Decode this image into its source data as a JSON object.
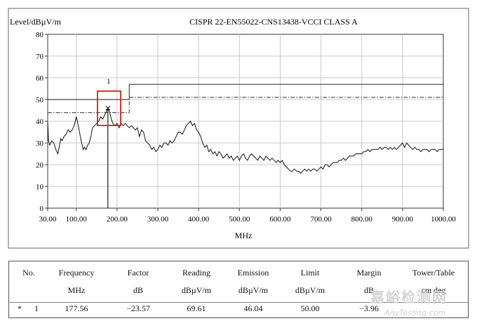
{
  "chart_data": {
    "type": "line",
    "title": "CISPR 22-EN55022-CNS13438-VCCI CLASS A",
    "ylabel": "Level/dBµV/m",
    "xlabel": "MHz",
    "xlim": [
      30,
      1000
    ],
    "ylim": [
      0,
      80
    ],
    "x_ticks": [
      "30.00",
      "100.00",
      "200.00",
      "300.00",
      "400.00",
      "500.00",
      "600.00",
      "700.00",
      "800.00",
      "900.00",
      "1000.00"
    ],
    "y_ticks": [
      "0",
      "10",
      "20",
      "30",
      "40",
      "50",
      "60",
      "70",
      "80"
    ],
    "grid": true,
    "limit_lines": [
      {
        "style": "solid",
        "points": [
          [
            30,
            50
          ],
          [
            230,
            50
          ],
          [
            230,
            57
          ],
          [
            1000,
            57
          ]
        ]
      },
      {
        "style": "dashdot",
        "points": [
          [
            30,
            44
          ],
          [
            230,
            44
          ],
          [
            230,
            51
          ],
          [
            1000,
            51
          ]
        ]
      }
    ],
    "marker": {
      "label": "1",
      "x": 177.56,
      "y": 46.04
    },
    "series": [
      {
        "points": [
          [
            30,
            40
          ],
          [
            32,
            31
          ],
          [
            35,
            29
          ],
          [
            40,
            31
          ],
          [
            45,
            30
          ],
          [
            50,
            27
          ],
          [
            55,
            25
          ],
          [
            58,
            28
          ],
          [
            62,
            32
          ],
          [
            65,
            31
          ],
          [
            70,
            33
          ],
          [
            75,
            34
          ],
          [
            80,
            36
          ],
          [
            85,
            35
          ],
          [
            90,
            36
          ],
          [
            95,
            38
          ],
          [
            100,
            42
          ],
          [
            103,
            40
          ],
          [
            107,
            36
          ],
          [
            110,
            33
          ],
          [
            113,
            30
          ],
          [
            117,
            27
          ],
          [
            120,
            28
          ],
          [
            124,
            27
          ],
          [
            128,
            29
          ],
          [
            132,
            30
          ],
          [
            136,
            33
          ],
          [
            140,
            37
          ],
          [
            145,
            38
          ],
          [
            150,
            39
          ],
          [
            155,
            40
          ],
          [
            160,
            42
          ],
          [
            165,
            41
          ],
          [
            170,
            43
          ],
          [
            175,
            45
          ],
          [
            178,
            46
          ],
          [
            182,
            44
          ],
          [
            186,
            41
          ],
          [
            190,
            39
          ],
          [
            195,
            38
          ],
          [
            200,
            39
          ],
          [
            205,
            37
          ],
          [
            210,
            39
          ],
          [
            215,
            38
          ],
          [
            220,
            39
          ],
          [
            225,
            38
          ],
          [
            230,
            37
          ],
          [
            235,
            38
          ],
          [
            240,
            37
          ],
          [
            245,
            36
          ],
          [
            250,
            37
          ],
          [
            255,
            33
          ],
          [
            260,
            36
          ],
          [
            265,
            35
          ],
          [
            270,
            31
          ],
          [
            275,
            30
          ],
          [
            280,
            29
          ],
          [
            285,
            27
          ],
          [
            290,
            28
          ],
          [
            295,
            26
          ],
          [
            300,
            27
          ],
          [
            305,
            29
          ],
          [
            310,
            28
          ],
          [
            315,
            30
          ],
          [
            320,
            30
          ],
          [
            325,
            29
          ],
          [
            330,
            31
          ],
          [
            335,
            30
          ],
          [
            340,
            31
          ],
          [
            345,
            33
          ],
          [
            350,
            35
          ],
          [
            355,
            35
          ],
          [
            360,
            34
          ],
          [
            365,
            36
          ],
          [
            370,
            38
          ],
          [
            375,
            39
          ],
          [
            380,
            40
          ],
          [
            385,
            38
          ],
          [
            390,
            39
          ],
          [
            395,
            36
          ],
          [
            400,
            35
          ],
          [
            405,
            33
          ],
          [
            410,
            30
          ],
          [
            415,
            28
          ],
          [
            420,
            29
          ],
          [
            425,
            26
          ],
          [
            430,
            27
          ],
          [
            435,
            25
          ],
          [
            440,
            26
          ],
          [
            445,
            24
          ],
          [
            450,
            26
          ],
          [
            455,
            25
          ],
          [
            460,
            23
          ],
          [
            465,
            24
          ],
          [
            470,
            25
          ],
          [
            475,
            23
          ],
          [
            480,
            24
          ],
          [
            485,
            22
          ],
          [
            490,
            23
          ],
          [
            495,
            24
          ],
          [
            500,
            22
          ],
          [
            505,
            24
          ],
          [
            510,
            25
          ],
          [
            515,
            23
          ],
          [
            520,
            22
          ],
          [
            525,
            24
          ],
          [
            530,
            25
          ],
          [
            535,
            24
          ],
          [
            540,
            23
          ],
          [
            545,
            22
          ],
          [
            550,
            24
          ],
          [
            555,
            23
          ],
          [
            560,
            22
          ],
          [
            565,
            24
          ],
          [
            570,
            23
          ],
          [
            575,
            22
          ],
          [
            580,
            23
          ],
          [
            585,
            22
          ],
          [
            590,
            21
          ],
          [
            595,
            22
          ],
          [
            600,
            21
          ],
          [
            605,
            22
          ],
          [
            610,
            20
          ],
          [
            615,
            19
          ],
          [
            620,
            18
          ],
          [
            625,
            17
          ],
          [
            630,
            17
          ],
          [
            635,
            18
          ],
          [
            640,
            17
          ],
          [
            645,
            17
          ],
          [
            650,
            16
          ],
          [
            655,
            17
          ],
          [
            660,
            18
          ],
          [
            665,
            17
          ],
          [
            670,
            18
          ],
          [
            675,
            17
          ],
          [
            680,
            18
          ],
          [
            685,
            18
          ],
          [
            690,
            17
          ],
          [
            695,
            18
          ],
          [
            700,
            19
          ],
          [
            705,
            18
          ],
          [
            710,
            20
          ],
          [
            715,
            20
          ],
          [
            720,
            19
          ],
          [
            725,
            20
          ],
          [
            730,
            21
          ],
          [
            735,
            21
          ],
          [
            740,
            21
          ],
          [
            745,
            22
          ],
          [
            750,
            22
          ],
          [
            755,
            23
          ],
          [
            760,
            22
          ],
          [
            765,
            23
          ],
          [
            770,
            24
          ],
          [
            775,
            24
          ],
          [
            780,
            24
          ],
          [
            785,
            25
          ],
          [
            790,
            25
          ],
          [
            795,
            25
          ],
          [
            800,
            25
          ],
          [
            805,
            26
          ],
          [
            810,
            26
          ],
          [
            815,
            27
          ],
          [
            820,
            26
          ],
          [
            825,
            27
          ],
          [
            830,
            27
          ],
          [
            835,
            27
          ],
          [
            840,
            27
          ],
          [
            845,
            28
          ],
          [
            850,
            27
          ],
          [
            855,
            28
          ],
          [
            860,
            28
          ],
          [
            865,
            27
          ],
          [
            870,
            28
          ],
          [
            875,
            27
          ],
          [
            880,
            28
          ],
          [
            885,
            27
          ],
          [
            890,
            28
          ],
          [
            895,
            29
          ],
          [
            900,
            30
          ],
          [
            905,
            28
          ],
          [
            910,
            30
          ],
          [
            915,
            29
          ],
          [
            920,
            28
          ],
          [
            925,
            27
          ],
          [
            930,
            28
          ],
          [
            935,
            27
          ],
          [
            940,
            27
          ],
          [
            945,
            26
          ],
          [
            950,
            27
          ],
          [
            955,
            27
          ],
          [
            960,
            27
          ],
          [
            965,
            26
          ],
          [
            970,
            27
          ],
          [
            975,
            27
          ],
          [
            980,
            27
          ],
          [
            985,
            26
          ],
          [
            990,
            27
          ],
          [
            995,
            27
          ],
          [
            1000,
            27
          ]
        ]
      }
    ]
  },
  "table": {
    "headers_row1": [
      "No.",
      "Frequency",
      "Factor",
      "Reading",
      "Emission",
      "Limit",
      "Margin",
      "Tower/Table"
    ],
    "headers_row2": [
      "",
      "MHz",
      "dB",
      "dBµV/m",
      "dBµV/m",
      "dBµV/m",
      "dB",
      "cm deg"
    ],
    "rows": [
      {
        "mark": "*",
        "no": "1",
        "frequency": "177.56",
        "factor": "−23.57",
        "reading": "69.61",
        "emission": "46.04",
        "limit": "50.00",
        "margin": "−3.96"
      }
    ]
  },
  "watermark": {
    "text": "嘉峪检测网",
    "subtext": "AnyTesting.com"
  }
}
